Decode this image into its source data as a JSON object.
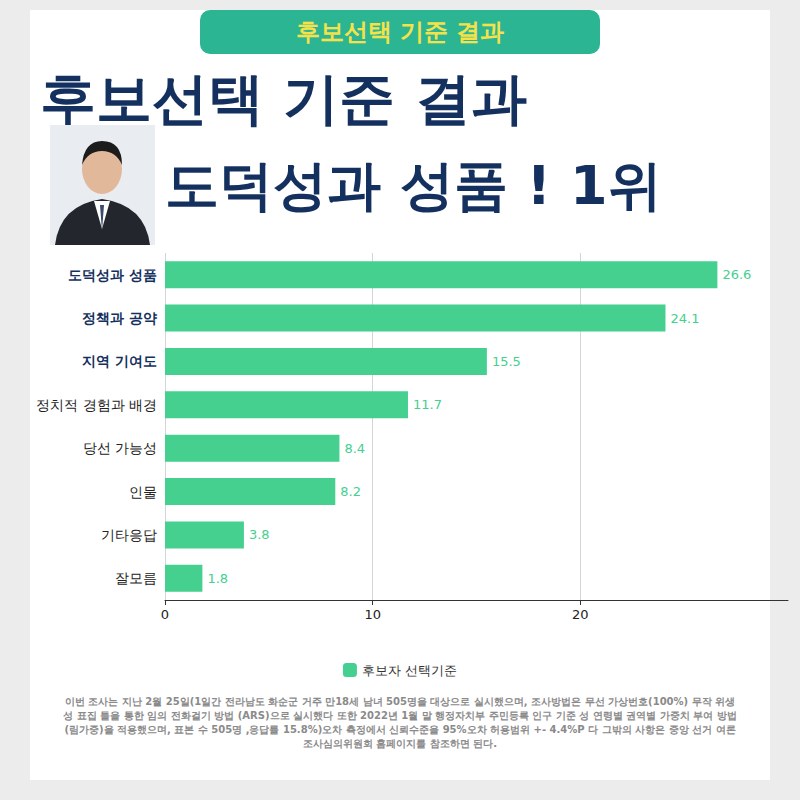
{
  "chart_data": {
    "type": "bar",
    "orientation": "horizontal",
    "title": "후보선택 기준 결과",
    "subtitle": "도덕성과 성품 ! 1위",
    "annotations": {
      "banner": "후보선택 기준 결과",
      "footnote": "이번 조사는 지난 2월 25일(1일간 전라남도 화순군 거주 만18세 남녀 505명을 대상으로 실시했으며, 조사방법은 무선 가상번호(100%) 무작 위생성 표집 틀을 통한 임의 전화걸기 방법 (ARS)으로 실시했다 또한 2022년 1월 말 행정자치부 주민등록 인구 기준 성 연령별 권역별 가중치 부여 방법 (림가중)을 적용했으며, 표본 수 505명 ,응답률 15.8%)오차 측정에서 신뢰수준을 95%오차 허용범위 +- 4.4%P 다 그밖의 사항은 중앙 선거 여론 조사심의위원회 홈페이지를 참조하면 된다."
    },
    "categories": [
      "도덕성과 성품",
      "정책과 공약",
      "지역 기여도",
      "정치적 경험과 배경",
      "당선 가능성",
      "인물",
      "기타응답",
      "잘모름"
    ],
    "series": [
      {
        "name": "후보자 선택기준",
        "color": "#45d08f",
        "values": [
          26.6,
          24.1,
          15.5,
          11.7,
          8.4,
          8.2,
          3.8,
          1.8
        ]
      }
    ],
    "xlim": [
      0,
      30
    ],
    "xticks": [
      0,
      10,
      20
    ],
    "grid": true,
    "data_labels": true,
    "legend": "bottom"
  }
}
